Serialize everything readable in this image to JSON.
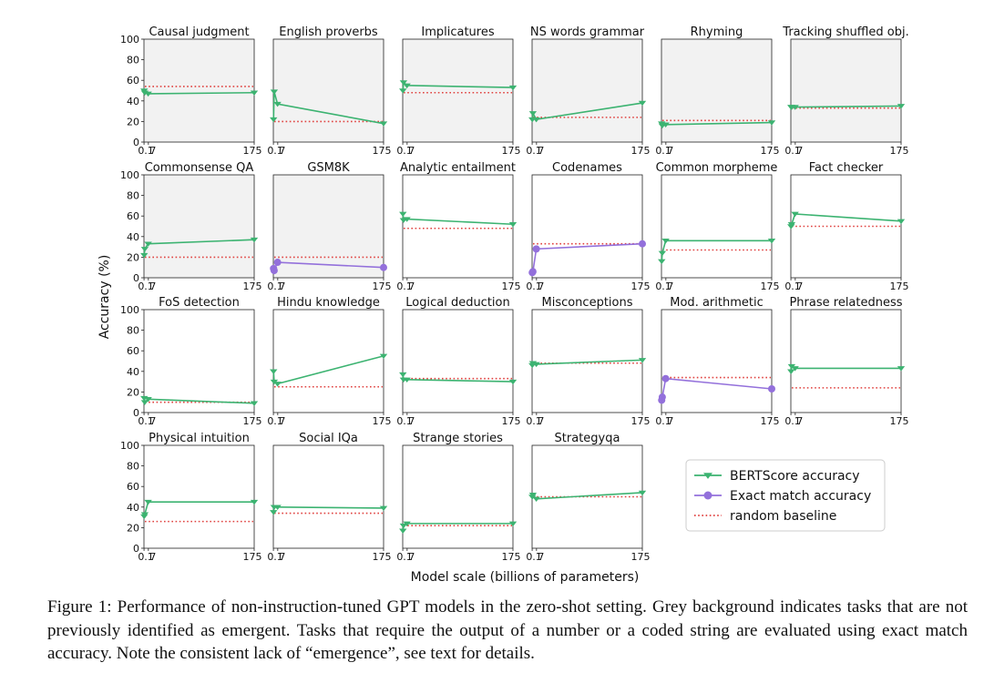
{
  "chart_data": {
    "type": "line",
    "xlabel": "Model scale (billions of parameters)",
    "ylabel": "Accuracy (%)",
    "x_ticks": [
      "0.1",
      "7",
      "175"
    ],
    "y_ticks": [
      "0",
      "20",
      "40",
      "60",
      "80",
      "100"
    ],
    "ylim": [
      0,
      100
    ],
    "x": [
      0.35,
      1.3,
      6.7,
      175
    ],
    "legend": {
      "placement": "lower-right",
      "entries": [
        {
          "key": "bert",
          "label": "BERTScore accuracy",
          "color": "#3cb371",
          "marker": "triangle-down"
        },
        {
          "key": "exact",
          "label": "Exact match accuracy",
          "color": "#9370db",
          "marker": "circle"
        },
        {
          "key": "random",
          "label": "random baseline",
          "color": "#e0413f",
          "marker": "dotted-line"
        }
      ]
    },
    "panels": [
      {
        "title": "Causal judgment",
        "grey": true,
        "metric": "bert",
        "values": [
          50,
          48,
          47,
          48
        ],
        "baseline": 54
      },
      {
        "title": "English proverbs",
        "grey": true,
        "metric": "bert",
        "values": [
          22,
          49,
          37,
          18
        ],
        "baseline": 20
      },
      {
        "title": "Implicatures",
        "grey": true,
        "metric": "bert",
        "values": [
          50,
          58,
          55,
          53
        ],
        "baseline": 48
      },
      {
        "title": "NS words grammar",
        "grey": true,
        "metric": "bert",
        "values": [
          22,
          28,
          22,
          38
        ],
        "baseline": 24
      },
      {
        "title": "Rhyming",
        "grey": true,
        "metric": "bert",
        "values": [
          18,
          16,
          17,
          19
        ],
        "baseline": 21
      },
      {
        "title": "Tracking shuffled obj.",
        "grey": true,
        "metric": "bert",
        "values": [
          34,
          34,
          34,
          35
        ],
        "baseline": 33
      },
      {
        "title": "Commonsense QA",
        "grey": true,
        "metric": "bert",
        "values": [
          22,
          28,
          33,
          37
        ],
        "baseline": 20
      },
      {
        "title": "GSM8K",
        "grey": true,
        "metric": "exact",
        "values": [
          9,
          7,
          15,
          10
        ],
        "baseline": 20
      },
      {
        "title": "Analytic entailment",
        "grey": false,
        "metric": "bert",
        "values": [
          62,
          56,
          57,
          52
        ],
        "baseline": 48
      },
      {
        "title": "Codenames",
        "grey": false,
        "metric": "exact",
        "values": [
          5,
          6,
          28,
          33
        ],
        "baseline": 33
      },
      {
        "title": "Common morpheme",
        "grey": false,
        "metric": "bert",
        "values": [
          16,
          24,
          36,
          36
        ],
        "baseline": 27
      },
      {
        "title": "Fact checker",
        "grey": false,
        "metric": "bert",
        "values": [
          50,
          52,
          62,
          55
        ],
        "baseline": 50
      },
      {
        "title": "FoS detection",
        "grey": false,
        "metric": "bert",
        "values": [
          14,
          10,
          13,
          9
        ],
        "baseline": 10
      },
      {
        "title": "Hindu knowledge",
        "grey": false,
        "metric": "bert",
        "values": [
          40,
          30,
          28,
          55
        ],
        "baseline": 25
      },
      {
        "title": "Logical deduction",
        "grey": false,
        "metric": "bert",
        "values": [
          37,
          32,
          32,
          30
        ],
        "baseline": 33
      },
      {
        "title": "Misconceptions",
        "grey": false,
        "metric": "bert",
        "values": [
          46,
          48,
          47,
          51
        ],
        "baseline": 48
      },
      {
        "title": "Mod. arithmetic",
        "grey": false,
        "metric": "exact",
        "values": [
          12,
          15,
          33,
          23
        ],
        "baseline": 34
      },
      {
        "title": "Phrase relatedness",
        "grey": false,
        "metric": "bert",
        "values": [
          40,
          45,
          43,
          43
        ],
        "baseline": 24
      },
      {
        "title": "Physical intuition",
        "grey": false,
        "metric": "bert",
        "values": [
          31,
          33,
          45,
          45
        ],
        "baseline": 26
      },
      {
        "title": "Social IQa",
        "grey": false,
        "metric": "bert",
        "values": [
          35,
          40,
          40,
          39
        ],
        "baseline": 34
      },
      {
        "title": "Strange stories",
        "grey": false,
        "metric": "bert",
        "values": [
          17,
          22,
          24,
          24
        ],
        "baseline": 22
      },
      {
        "title": "Strategyqa",
        "grey": false,
        "metric": "bert",
        "values": [
          50,
          52,
          48,
          54
        ],
        "baseline": 50
      }
    ]
  },
  "colors": {
    "grey_background": "#f2f2f2",
    "plain_background": "#ffffff",
    "axes": "#222222"
  },
  "caption": "Figure 1:  Performance of non-instruction-tuned GPT models in the zero-shot setting. Grey background indicates tasks that are not previously identified as emergent. Tasks that require the output of a number or a coded string are evaluated using exact match accuracy. Note the consistent lack of “emergence”, see text for details."
}
